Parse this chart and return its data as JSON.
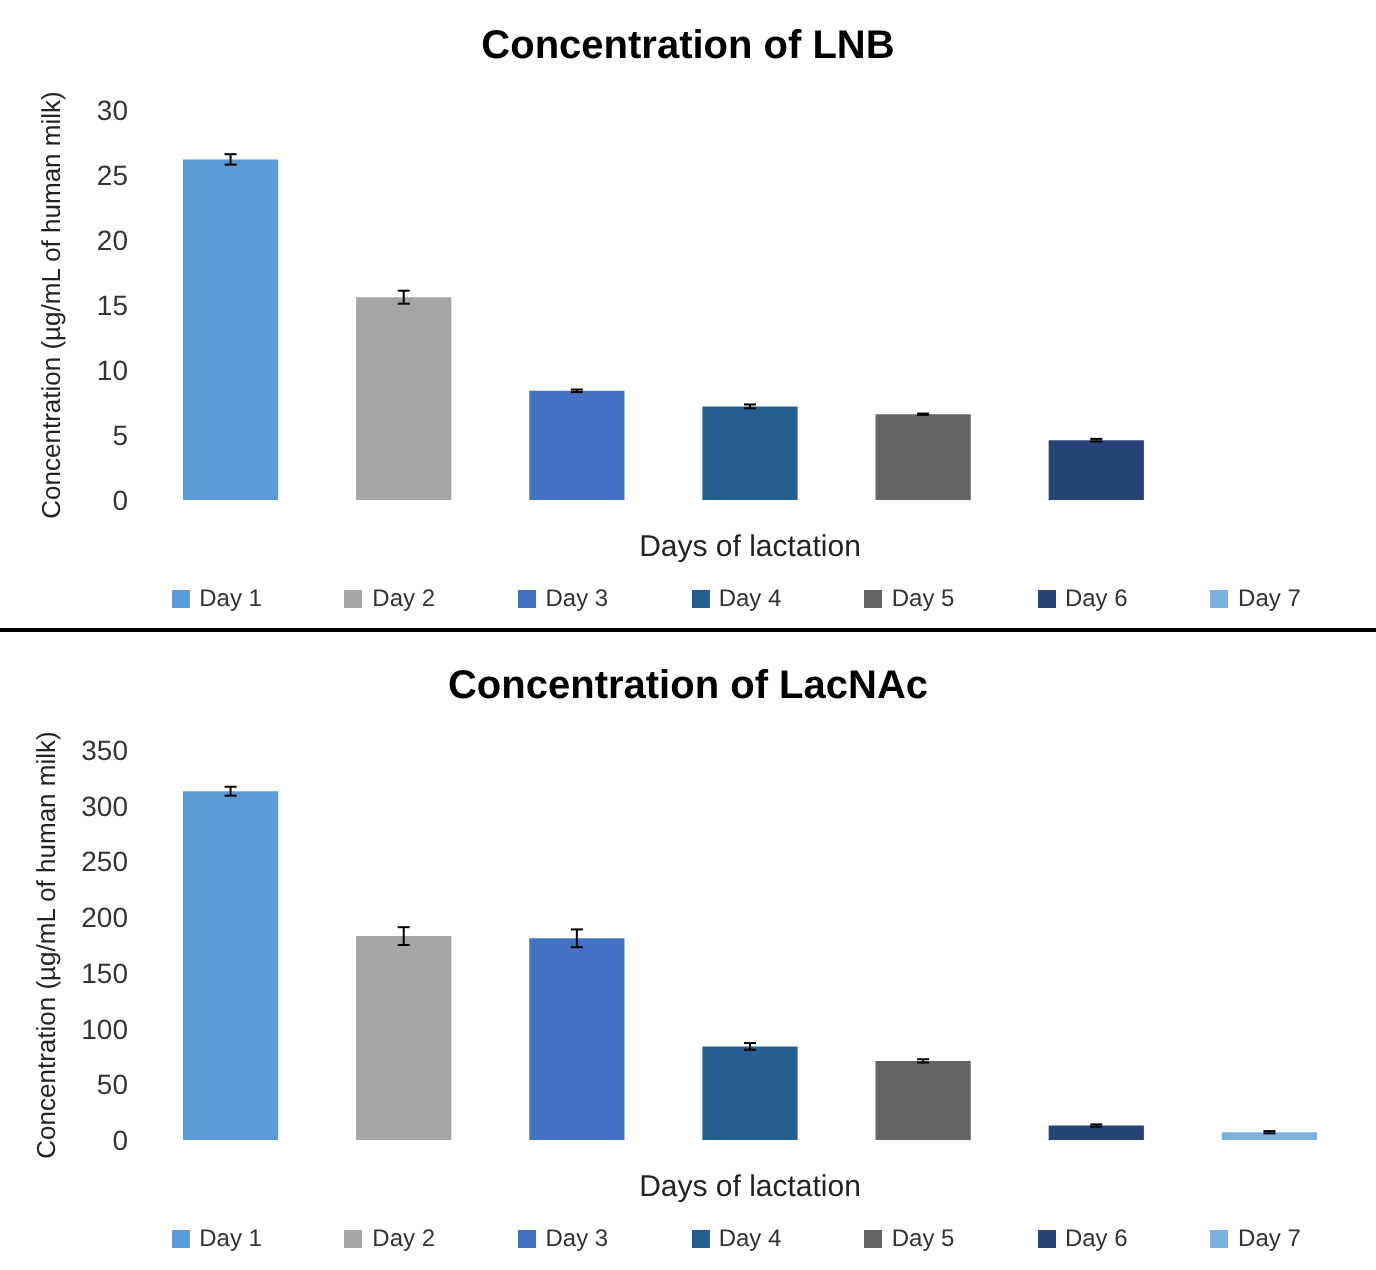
{
  "chart_data": [
    {
      "type": "bar",
      "title": "Concentration of LNB",
      "xlabel": "Days of lactation",
      "ylabel": "Concentration (µg/mL of human milk)",
      "categories": [
        "Day 1",
        "Day 2",
        "Day 3",
        "Day 4",
        "Day 5",
        "Day 6",
        "Day 7"
      ],
      "values": [
        26.2,
        15.6,
        8.4,
        7.2,
        6.6,
        4.6,
        null
      ],
      "errors": [
        0.4,
        0.5,
        0.1,
        0.15,
        0.05,
        0.1,
        null
      ],
      "colors": [
        "#5b9bd5",
        "#a5a5a5",
        "#4472c4",
        "#255e91",
        "#636363",
        "#264478",
        "#7cafdd"
      ],
      "ylim": [
        0,
        30
      ],
      "yticks": [
        0,
        5,
        10,
        15,
        20,
        25,
        30
      ],
      "grid": false
    },
    {
      "type": "bar",
      "title": "Concentration of LacNAc",
      "xlabel": "Days of lactation",
      "ylabel": "Concentration (µg/mL of human milk)",
      "categories": [
        "Day 1",
        "Day 2",
        "Day 3",
        "Day 4",
        "Day 5",
        "Day 6",
        "Day 7"
      ],
      "values": [
        313,
        183,
        181,
        84,
        71,
        13,
        7
      ],
      "errors": [
        4,
        8,
        8,
        3,
        1.5,
        1,
        1
      ],
      "colors": [
        "#5b9bd5",
        "#a5a5a5",
        "#4472c4",
        "#255e91",
        "#636363",
        "#264478",
        "#7cafdd"
      ],
      "ylim": [
        0,
        350
      ],
      "yticks": [
        0,
        50,
        100,
        150,
        200,
        250,
        300,
        350
      ],
      "grid": false
    }
  ]
}
